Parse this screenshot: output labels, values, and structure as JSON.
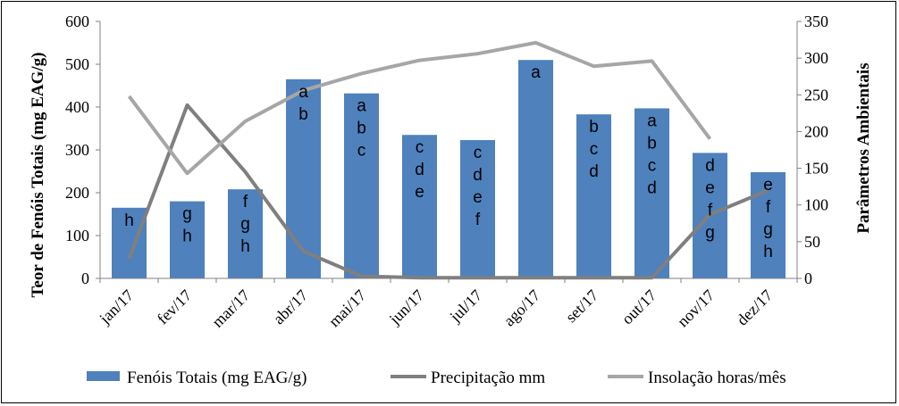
{
  "chart_data": {
    "type": "bar",
    "categories": [
      "jan/17",
      "fev/17",
      "mar/17",
      "abr/17",
      "mai/17",
      "jun/17",
      "jul/17",
      "ago/17",
      "set/17",
      "out/17",
      "nov/17",
      "dez/17"
    ],
    "series": [
      {
        "name": "Fenóis Totais (mg EAG/g)",
        "type": "bar",
        "axis": "left",
        "color": "#4f81bd",
        "values": [
          165,
          180,
          208,
          465,
          432,
          335,
          323,
          510,
          383,
          397,
          293,
          248
        ],
        "labels": [
          "h",
          "gh",
          "fgh",
          "ab",
          "abc",
          "cde",
          "cdef",
          "a",
          "bcd",
          "abcd",
          "defg",
          "efgh"
        ]
      },
      {
        "name": "Precipitação mm",
        "type": "line",
        "axis": "right",
        "color": "#7f7f7f",
        "values": [
          27,
          236,
          145,
          37,
          3,
          1,
          1,
          1,
          1,
          1,
          87,
          120
        ]
      },
      {
        "name": "Insolação horas/mês",
        "type": "line",
        "axis": "right",
        "color": "#a6a6a6",
        "values": [
          248,
          143,
          214,
          256,
          279,
          297,
          306,
          321,
          289,
          296,
          190,
          null
        ]
      }
    ],
    "ylabel_left": "Teor de Fenóis Totais (mg EAG/g)",
    "ylabel_right": "Parâmetros Ambientais",
    "ylim_left": [
      0,
      600
    ],
    "ylim_right": [
      0,
      350
    ],
    "yticks_left": [
      "0",
      "100",
      "200",
      "300",
      "400",
      "500",
      "600"
    ],
    "yticks_right": [
      "0",
      "50",
      "100",
      "150",
      "200",
      "250",
      "300",
      "350"
    ],
    "legend_position": "bottom",
    "grid": false
  }
}
